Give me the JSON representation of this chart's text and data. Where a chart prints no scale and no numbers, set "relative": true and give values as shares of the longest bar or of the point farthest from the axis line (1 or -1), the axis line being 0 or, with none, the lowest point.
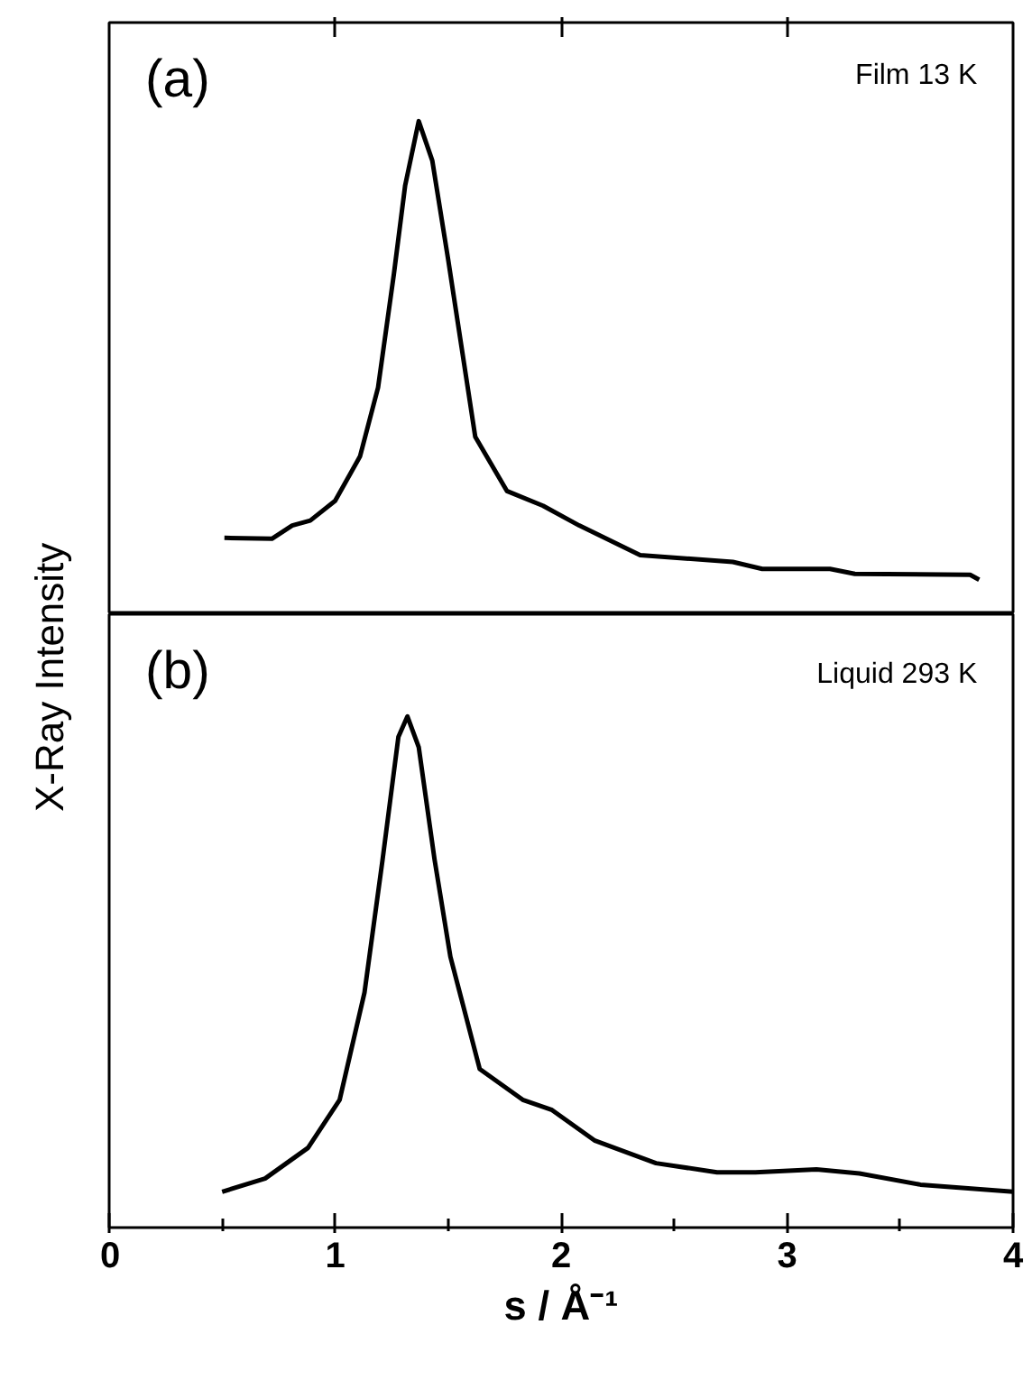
{
  "chart_data": [
    {
      "type": "line",
      "relative": true,
      "ylabel": "X-Ray Intensity",
      "xlim": [
        0,
        4
      ],
      "tick_labels": false,
      "xticks": [
        {
          "value": 1,
          "label": null
        },
        {
          "value": 2,
          "label": null
        },
        {
          "value": 3,
          "label": null
        }
      ],
      "annotations": [
        "(a)",
        "Film   13 K"
      ],
      "series": [
        {
          "color": "#000000",
          "x": [
            0.51,
            0.72,
            0.81,
            0.89,
            1.0,
            1.11,
            1.19,
            1.26,
            1.31,
            1.37,
            1.43,
            1.5,
            1.57,
            1.62,
            1.76,
            1.92,
            2.08,
            2.35,
            2.76,
            2.89,
            3.19,
            3.3,
            3.81,
            3.85
          ],
          "values": [
            0.155,
            0.153,
            0.18,
            0.19,
            0.23,
            0.32,
            0.46,
            0.69,
            0.87,
            1.0,
            0.92,
            0.72,
            0.51,
            0.36,
            0.25,
            0.22,
            0.18,
            0.12,
            0.106,
            0.092,
            0.092,
            0.082,
            0.08,
            0.07
          ]
        }
      ]
    },
    {
      "type": "line",
      "relative": true,
      "xlabel": "s / Å⁻¹",
      "xlim": [
        0,
        4
      ],
      "tick_labels": "x",
      "xticks": [
        0,
        {
          "value": 0.5,
          "label": null
        },
        1,
        {
          "value": 1.5,
          "label": null
        },
        2,
        {
          "value": 2.5,
          "label": null
        },
        3,
        {
          "value": 3.5,
          "label": null
        },
        4
      ],
      "annotations": [
        "(b)",
        "Liquid   293 K"
      ],
      "series": [
        {
          "color": "#000000",
          "x": [
            0.5,
            0.69,
            0.88,
            1.02,
            1.13,
            1.21,
            1.28,
            1.32,
            1.37,
            1.44,
            1.51,
            1.64,
            1.83,
            1.96,
            2.15,
            2.42,
            2.69,
            2.86,
            3.13,
            3.32,
            3.59,
            4.0
          ],
          "values": [
            0.07,
            0.096,
            0.156,
            0.25,
            0.46,
            0.72,
            0.96,
            1.0,
            0.94,
            0.72,
            0.53,
            0.31,
            0.25,
            0.23,
            0.17,
            0.126,
            0.108,
            0.108,
            0.114,
            0.106,
            0.084,
            0.07
          ]
        }
      ]
    }
  ]
}
